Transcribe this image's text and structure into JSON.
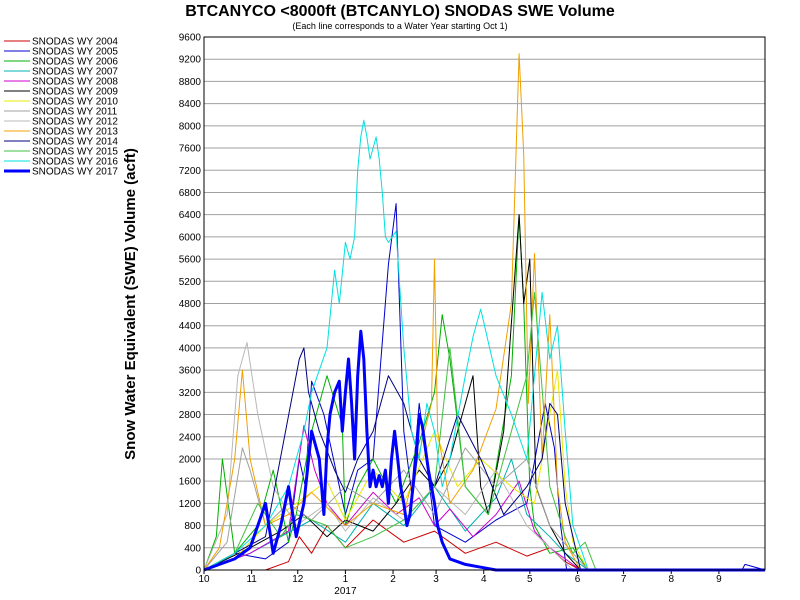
{
  "chart_data": {
    "type": "line",
    "title": "BTCANYCO <8000ft (BTCANYLO) SNODAS SWE Volume",
    "subtitle": "(Each line corresponds to a Water Year starting Oct 1)",
    "ylabel": "Snow Water Equivalent (SWE) Volume (acft)",
    "xlabel": "",
    "ylim": [
      0,
      9600
    ],
    "yticks": [
      0,
      400,
      800,
      1200,
      1600,
      2000,
      2400,
      2800,
      3200,
      3600,
      4000,
      4400,
      4800,
      5200,
      5600,
      6000,
      6400,
      6800,
      7200,
      7600,
      8000,
      8400,
      8800,
      9200,
      9600
    ],
    "ytick_labels": [
      "0",
      "400",
      "800",
      "1200",
      "1600",
      "2000",
      "2400",
      "2800",
      "3200",
      "3600",
      "4000",
      "4400",
      "4800",
      "5200",
      "5600",
      "6000",
      "6400",
      "6800",
      "7200",
      "7600",
      "8000",
      "8400",
      "8800",
      "9200",
      "9600"
    ],
    "x_unit": "day of water year (Oct 1 = 0)",
    "xlim": [
      0,
      365
    ],
    "xticks": [
      0,
      31,
      61,
      92,
      123,
      151,
      182,
      212,
      243,
      273,
      304,
      335
    ],
    "xtick_labels": [
      "10",
      "11",
      "12",
      "1",
      "2",
      "3",
      "4",
      "5",
      "6",
      "7",
      "8",
      "9"
    ],
    "year_label": "2017",
    "year_label_at": 92,
    "grid": true,
    "legend_position": "left",
    "series": [
      {
        "name": "SNODAS WY 2004",
        "color": "#cc0000",
        "width": 1,
        "x": [
          0,
          40,
          55,
          62,
          70,
          80,
          92,
          110,
          130,
          150,
          170,
          190,
          210,
          225,
          235,
          245,
          365
        ],
        "y": [
          0,
          0,
          150,
          600,
          300,
          800,
          400,
          900,
          500,
          700,
          300,
          500,
          250,
          400,
          150,
          0,
          0
        ]
      },
      {
        "name": "SNODAS WY 2005",
        "color": "#0000cc",
        "width": 1,
        "x": [
          0,
          20,
          40,
          55,
          62,
          66,
          70,
          78,
          92,
          100,
          110,
          120,
          125,
          130,
          135,
          140,
          150,
          170,
          190,
          210,
          222,
          228,
          232,
          236,
          245,
          255,
          350,
          352,
          365
        ],
        "y": [
          0,
          300,
          200,
          500,
          2000,
          1500,
          3400,
          2800,
          1000,
          1800,
          2000,
          5500,
          6600,
          2500,
          1400,
          3000,
          800,
          500,
          900,
          1200,
          3000,
          2200,
          800,
          0,
          0,
          0,
          0,
          100,
          0
        ]
      },
      {
        "name": "SNODAS WY 2006",
        "color": "#00b000",
        "width": 1,
        "x": [
          0,
          8,
          12,
          20,
          35,
          45,
          55,
          60,
          70,
          80,
          90,
          92,
          100,
          110,
          125,
          140,
          150,
          155,
          160,
          170,
          185,
          200,
          205,
          208,
          212,
          215,
          225,
          240,
          250,
          365
        ],
        "y": [
          0,
          600,
          2000,
          300,
          800,
          1800,
          500,
          1000,
          2500,
          3500,
          2600,
          800,
          1500,
          2000,
          1200,
          2300,
          3200,
          4600,
          3800,
          1500,
          1000,
          3500,
          6400,
          4800,
          1500,
          800,
          300,
          400,
          0,
          0
        ]
      },
      {
        "name": "SNODAS WY 2007",
        "color": "#00b0b0",
        "width": 1,
        "x": [
          0,
          30,
          50,
          70,
          92,
          110,
          130,
          150,
          170,
          190,
          200,
          210,
          225,
          235,
          250,
          365
        ],
        "y": [
          0,
          300,
          600,
          900,
          500,
          1200,
          800,
          1500,
          700,
          1300,
          2000,
          1000,
          600,
          300,
          0,
          0
        ]
      },
      {
        "name": "SNODAS WY 2008",
        "color": "#cc00cc",
        "width": 1,
        "x": [
          0,
          30,
          55,
          65,
          72,
          80,
          92,
          110,
          125,
          140,
          150,
          160,
          175,
          190,
          205,
          215,
          225,
          235,
          245,
          365
        ],
        "y": [
          0,
          300,
          700,
          2600,
          1800,
          1200,
          800,
          1400,
          1000,
          1300,
          800,
          1100,
          600,
          1000,
          1600,
          700,
          400,
          200,
          0,
          0
        ]
      },
      {
        "name": "SNODAS WY 2009",
        "color": "#000000",
        "width": 1,
        "x": [
          0,
          30,
          50,
          65,
          80,
          92,
          110,
          125,
          140,
          150,
          160,
          175,
          180,
          185,
          195,
          205,
          208,
          212,
          216,
          225,
          235,
          245,
          365
        ],
        "y": [
          0,
          400,
          700,
          1000,
          600,
          900,
          700,
          1200,
          1800,
          1500,
          2000,
          3500,
          1500,
          1000,
          2500,
          6400,
          4800,
          5600,
          1500,
          800,
          300,
          0,
          0
        ]
      },
      {
        "name": "SNODAS WY 2010",
        "color": "#e8e800",
        "width": 1,
        "x": [
          0,
          20,
          40,
          60,
          80,
          92,
          110,
          130,
          150,
          165,
          180,
          200,
          215,
          225,
          230,
          235,
          240,
          250,
          365
        ],
        "y": [
          0,
          200,
          800,
          1200,
          1600,
          900,
          1800,
          1200,
          2500,
          1500,
          2000,
          1500,
          1200,
          2800,
          3600,
          1500,
          500,
          0,
          0
        ]
      },
      {
        "name": "SNODAS WY 2011",
        "color": "#a0a0a0",
        "width": 1,
        "x": [
          0,
          15,
          25,
          30,
          40,
          55,
          70,
          92,
          110,
          130,
          150,
          170,
          190,
          210,
          225,
          240,
          250,
          365
        ],
        "y": [
          0,
          500,
          2200,
          1800,
          800,
          1200,
          900,
          1500,
          1200,
          1800,
          1000,
          2200,
          1500,
          2000,
          800,
          300,
          0,
          0
        ]
      },
      {
        "name": "SNODAS WY 2012",
        "color": "#b8b8b8",
        "width": 1,
        "x": [
          0,
          15,
          22,
          28,
          35,
          45,
          60,
          80,
          92,
          110,
          130,
          150,
          170,
          190,
          210,
          240,
          365
        ],
        "y": [
          0,
          1000,
          3500,
          4100,
          2800,
          1500,
          800,
          1200,
          700,
          1300,
          900,
          1500,
          1000,
          1800,
          800,
          0,
          0
        ]
      },
      {
        "name": "SNODAS WY 2013",
        "color": "#f0a000",
        "width": 1,
        "x": [
          0,
          10,
          20,
          25,
          30,
          40,
          55,
          70,
          92,
          110,
          130,
          148,
          150,
          152,
          160,
          175,
          190,
          200,
          205,
          208,
          211,
          215,
          220,
          225,
          230,
          235,
          245,
          365
        ],
        "y": [
          0,
          400,
          2000,
          3600,
          2000,
          800,
          1000,
          1400,
          800,
          1200,
          1000,
          3000,
          5600,
          2500,
          1200,
          1800,
          2900,
          4800,
          9300,
          7500,
          3000,
          5700,
          2000,
          4600,
          1500,
          500,
          0,
          0
        ]
      },
      {
        "name": "SNODAS WY 2014",
        "color": "#000080",
        "width": 1,
        "x": [
          0,
          20,
          40,
          62,
          65,
          68,
          75,
          85,
          92,
          100,
          110,
          120,
          130,
          140,
          150,
          165,
          180,
          195,
          210,
          220,
          225,
          230,
          235,
          245,
          365
        ],
        "y": [
          0,
          300,
          600,
          3800,
          4000,
          3200,
          2500,
          1800,
          1400,
          2000,
          2500,
          3500,
          3000,
          2000,
          1500,
          2800,
          2000,
          1000,
          1500,
          2000,
          3000,
          2800,
          1200,
          0,
          0
        ]
      },
      {
        "name": "SNODAS WY 2015",
        "color": "#40c040",
        "width": 1,
        "x": [
          0,
          20,
          35,
          50,
          60,
          80,
          92,
          110,
          130,
          150,
          160,
          170,
          185,
          200,
          210,
          215,
          225,
          235,
          240,
          248,
          255,
          365
        ],
        "y": [
          0,
          300,
          1200,
          600,
          1000,
          800,
          400,
          600,
          900,
          1500,
          4000,
          1500,
          1000,
          2500,
          3500,
          5000,
          1500,
          600,
          300,
          500,
          0,
          0
        ]
      },
      {
        "name": "SNODAS WY 2016",
        "color": "#00e0e0",
        "width": 1,
        "x": [
          0,
          20,
          40,
          55,
          65,
          70,
          80,
          85,
          88,
          92,
          95,
          98,
          100,
          102,
          104,
          106,
          108,
          110,
          112,
          114,
          116,
          118,
          120,
          125,
          130,
          135,
          140,
          145,
          150,
          155,
          160,
          170,
          175,
          180,
          190,
          200,
          210,
          220,
          225,
          230,
          235,
          240,
          250,
          365
        ],
        "y": [
          0,
          300,
          800,
          1500,
          2500,
          3200,
          4000,
          5400,
          4800,
          5900,
          5600,
          6000,
          7200,
          7800,
          8100,
          7800,
          7400,
          7600,
          7800,
          7400,
          6800,
          6000,
          5900,
          6100,
          4000,
          2500,
          2000,
          3000,
          2500,
          1500,
          2000,
          3500,
          4200,
          4700,
          3500,
          2800,
          2000,
          5000,
          3800,
          4400,
          2500,
          800,
          0,
          0
        ]
      },
      {
        "name": "SNODAS WY 2017",
        "color": "#0000ff",
        "width": 3,
        "x": [
          0,
          10,
          20,
          30,
          40,
          45,
          50,
          55,
          60,
          65,
          70,
          75,
          78,
          80,
          82,
          85,
          88,
          90,
          92,
          94,
          96,
          98,
          100,
          102,
          104,
          106,
          108,
          110,
          112,
          114,
          116,
          118,
          120,
          122,
          124,
          126,
          128,
          130,
          132,
          134,
          136,
          138,
          140,
          142,
          144,
          146,
          148,
          150,
          152,
          155,
          160,
          170,
          180,
          190,
          200,
          365
        ],
        "y": [
          0,
          100,
          200,
          400,
          1200,
          300,
          800,
          1500,
          600,
          1200,
          2500,
          2000,
          1000,
          2200,
          2800,
          3200,
          3400,
          2500,
          3200,
          3800,
          3000,
          2000,
          3500,
          4300,
          3800,
          2500,
          1500,
          1800,
          1500,
          1700,
          1500,
          1800,
          1200,
          2000,
          2500,
          2000,
          1500,
          1200,
          800,
          1000,
          1500,
          2000,
          2800,
          2600,
          2200,
          1800,
          1500,
          1200,
          800,
          500,
          200,
          100,
          50,
          0,
          0,
          0
        ]
      }
    ]
  }
}
